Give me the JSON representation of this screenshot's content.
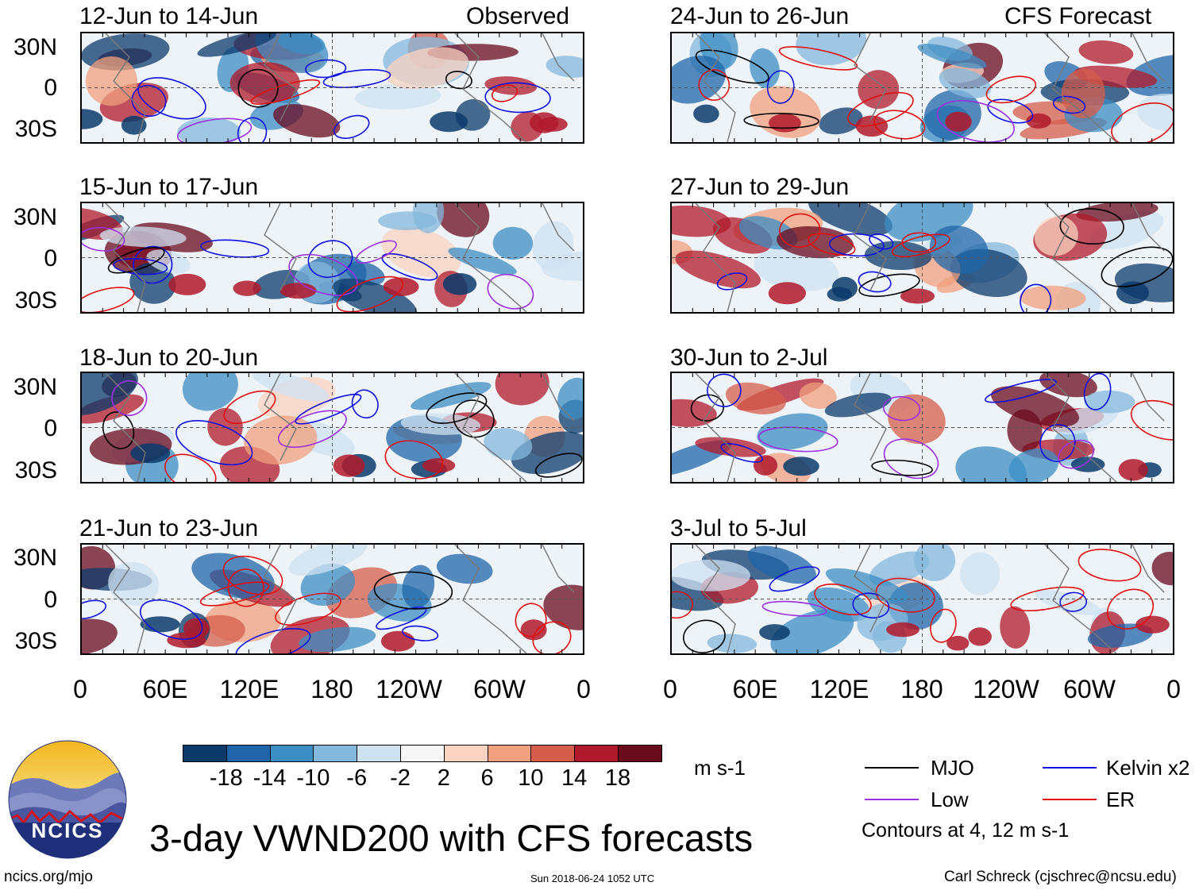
{
  "panels": {
    "obs1": {
      "title": "12-Jun to 14-Jun",
      "label": "Observed"
    },
    "obs2": {
      "title": "15-Jun to 17-Jun"
    },
    "obs3": {
      "title": "18-Jun to 20-Jun"
    },
    "obs4": {
      "title": "21-Jun to 23-Jun"
    },
    "fc1": {
      "title": "24-Jun to 26-Jun",
      "label": "CFS Forecast"
    },
    "fc2": {
      "title": "27-Jun to 29-Jun"
    },
    "fc3": {
      "title": "30-Jun to 2-Jul"
    },
    "fc4": {
      "title": "3-Jul to 5-Jul"
    }
  },
  "y_axis": {
    "north": "30N",
    "eq": "0",
    "south": "30S"
  },
  "x_axis": {
    "labels": [
      "0",
      "60E",
      "120E",
      "180",
      "120W",
      "60W",
      "0"
    ]
  },
  "colorbar": {
    "ticks": [
      "-18",
      "-14",
      "-10",
      "-6",
      "-2",
      "2",
      "6",
      "10",
      "14",
      "18"
    ],
    "colors": [
      "#0b3a6b",
      "#1f65a8",
      "#3c8ec4",
      "#84b8dc",
      "#cfe2f1",
      "#f7f7f7",
      "#fbd3c1",
      "#f0a07e",
      "#d65d4c",
      "#b0192b",
      "#6a0a1d"
    ],
    "units": "m s-1"
  },
  "legend": {
    "mjo": {
      "label": "MJO",
      "color": "#000000"
    },
    "kelvin": {
      "label": "Kelvin x2",
      "color": "#1010e0"
    },
    "low": {
      "label": "Low",
      "color": "#9b30e0"
    },
    "er": {
      "label": "ER",
      "color": "#e01010"
    },
    "note": "Contours at 4, 12 m s-1"
  },
  "logo": {
    "text": "NCICS"
  },
  "title": "3-day VWND200 with CFS forecasts",
  "footer": {
    "left": "ncics.org/mjo",
    "center": "Sun 2018-06-24 1052 UTC",
    "right": "Carl Schreck (cjschrec@ncsu.edu)"
  }
}
